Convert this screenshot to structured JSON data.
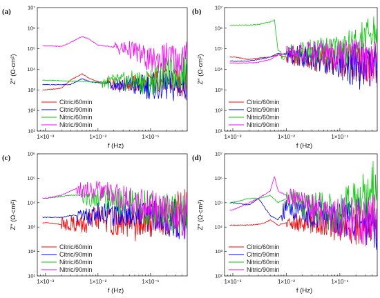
{
  "chart_data": [
    {
      "panel_label": "(a)",
      "type": "line",
      "xlabel": "f (Hz)",
      "ylabel": "Z″ (Ω·cm²)",
      "xscale": "log",
      "yscale": "log",
      "xlim": [
        0.0007,
        0.5
      ],
      "ylim": [
        10,
        10000000
      ],
      "x_ticks": [
        "1×10⁻³",
        "1×10⁻²",
        "1×10⁻¹"
      ],
      "y_ticks": [
        "10¹",
        "10²",
        "10³",
        "10⁴",
        "10⁵",
        "10⁶",
        "10⁷"
      ],
      "legend_position": "bottom-left",
      "grid": false,
      "series": [
        {
          "name": "Citric/60min",
          "color": "#ff0000",
          "x": [
            0.001,
            0.002,
            0.003,
            0.005,
            0.007,
            0.01,
            0.02,
            0.05,
            0.1,
            0.2,
            0.3,
            0.5
          ],
          "y": [
            1000,
            1200,
            3000,
            6000,
            3500,
            2500,
            2000,
            2000,
            2200,
            3500,
            2000,
            2500
          ],
          "noise": 0.25,
          "noise_from": 0.015
        },
        {
          "name": "Citric/90min",
          "color": "#0000ff",
          "x": [
            0.001,
            0.002,
            0.003,
            0.005,
            0.007,
            0.01,
            0.02,
            0.05,
            0.1,
            0.2,
            0.3,
            0.5
          ],
          "y": [
            1800,
            1800,
            1800,
            3500,
            2500,
            2200,
            2000,
            1500,
            1500,
            1600,
            1500,
            3000
          ],
          "noise": 0.3,
          "noise_from": 0.015
        },
        {
          "name": "Nitric/60min",
          "color": "#00cc00",
          "x": [
            0.001,
            0.002,
            0.003,
            0.005,
            0.007,
            0.01,
            0.02,
            0.05,
            0.1,
            0.2,
            0.3,
            0.5
          ],
          "y": [
            3000,
            2800,
            2600,
            2600,
            2500,
            2400,
            2500,
            2500,
            2500,
            6000,
            6000,
            9000
          ],
          "noise": 0.3,
          "noise_from": 0.012
        },
        {
          "name": "Nitric/90min",
          "color": "#ff00ff",
          "x": [
            0.001,
            0.002,
            0.003,
            0.005,
            0.007,
            0.01,
            0.02,
            0.05,
            0.1,
            0.2,
            0.3,
            0.5
          ],
          "y": [
            140000,
            130000,
            200000,
            400000,
            280000,
            150000,
            120000,
            80000,
            25000,
            40000,
            30000,
            30000
          ],
          "noise": 0.3,
          "noise_from": 0.02
        }
      ]
    },
    {
      "panel_label": "(b)",
      "type": "line",
      "xlabel": "f (Hz)",
      "ylabel": "Z″ (Ω·cm²)",
      "xscale": "log",
      "yscale": "log",
      "xlim": [
        0.0007,
        0.5
      ],
      "ylim": [
        10,
        10000000
      ],
      "x_ticks": [
        "1×10⁻³",
        "1×10⁻²",
        "1×10⁻¹"
      ],
      "y_ticks": [
        "10¹",
        "10²",
        "10³",
        "10⁴",
        "10⁵",
        "10⁶",
        "10⁷"
      ],
      "legend_position": "bottom-left",
      "grid": false,
      "series": [
        {
          "name": "Citric/60min",
          "color": "#ff0000",
          "x": [
            0.001,
            0.002,
            0.003,
            0.005,
            0.007,
            0.01,
            0.02,
            0.05,
            0.1,
            0.2,
            0.3,
            0.5
          ],
          "y": [
            40000,
            30000,
            35000,
            40000,
            50000,
            40000,
            35000,
            30000,
            25000,
            20000,
            15000,
            12000
          ],
          "noise": 0.35,
          "noise_from": 0.01
        },
        {
          "name": "Citric/90min",
          "color": "#0000ff",
          "x": [
            0.001,
            0.002,
            0.003,
            0.005,
            0.007,
            0.01,
            0.02,
            0.05,
            0.1,
            0.2,
            0.3,
            0.5
          ],
          "y": [
            25000,
            25000,
            30000,
            40000,
            60000,
            50000,
            45000,
            35000,
            25000,
            15000,
            10000,
            8000
          ],
          "noise": 0.4,
          "noise_from": 0.01
        },
        {
          "name": "Nitric/60min",
          "color": "#00cc00",
          "x": [
            0.001,
            0.002,
            0.003,
            0.005,
            0.006,
            0.007,
            0.01,
            0.02,
            0.05,
            0.1,
            0.2,
            0.3,
            0.5
          ],
          "y": [
            1400000,
            1400000,
            1500000,
            2000000,
            2500000,
            80000,
            60000,
            70000,
            80000,
            100000,
            150000,
            300000,
            600000
          ],
          "noise": 0.35,
          "noise_from": 0.008
        },
        {
          "name": "Nitric/90min",
          "color": "#ff00ff",
          "x": [
            0.001,
            0.002,
            0.003,
            0.005,
            0.007,
            0.01,
            0.02,
            0.05,
            0.1,
            0.2,
            0.3,
            0.5
          ],
          "y": [
            20000,
            20000,
            22000,
            30000,
            50000,
            60000,
            70000,
            60000,
            50000,
            40000,
            30000,
            25000
          ],
          "noise": 0.35,
          "noise_from": 0.01
        }
      ]
    },
    {
      "panel_label": "(c)",
      "type": "line",
      "xlabel": "f (Hz)",
      "ylabel": "Z″ (Ω·cm²)",
      "xscale": "log",
      "yscale": "log",
      "xlim": [
        0.0007,
        0.5
      ],
      "ylim": [
        10,
        1000000
      ],
      "x_ticks": [
        "1×10⁻³",
        "1×10⁻²",
        "1×10⁻¹"
      ],
      "y_ticks": [
        "10¹",
        "10²",
        "10³",
        "10⁴",
        "10⁵",
        "10⁶"
      ],
      "legend_position": "bottom-left",
      "grid": false,
      "series": [
        {
          "name": "Citric/60min",
          "color": "#ff0000",
          "x": [
            0.001,
            0.002,
            0.003,
            0.005,
            0.007,
            0.01,
            0.02,
            0.05,
            0.1,
            0.2,
            0.3,
            0.5
          ],
          "y": [
            1500,
            1300,
            1500,
            1200,
            1500,
            2500,
            1500,
            1200,
            2000,
            3000,
            4000,
            5000
          ],
          "noise": 0.3,
          "noise_from": 0.002
        },
        {
          "name": "Citric/90min",
          "color": "#0000ff",
          "x": [
            0.001,
            0.002,
            0.003,
            0.005,
            0.007,
            0.01,
            0.02,
            0.05,
            0.1,
            0.2,
            0.3,
            0.5
          ],
          "y": [
            2500,
            2500,
            3000,
            3000,
            2500,
            4500,
            3500,
            4000,
            3000,
            2500,
            2000,
            1500
          ],
          "noise": 0.3,
          "noise_from": 0.004
        },
        {
          "name": "Nitric/60min",
          "color": "#00cc00",
          "x": [
            0.001,
            0.002,
            0.003,
            0.005,
            0.007,
            0.01,
            0.02,
            0.05,
            0.1,
            0.2,
            0.3,
            0.5
          ],
          "y": [
            15000,
            18000,
            20000,
            20000,
            15000,
            18000,
            12000,
            8000,
            6000,
            4000,
            3000,
            2500
          ],
          "noise": 0.3,
          "noise_from": 0.005
        },
        {
          "name": "Nitric/90min",
          "color": "#ff00ff",
          "x": [
            0.001,
            0.002,
            0.003,
            0.004,
            0.005,
            0.007,
            0.01,
            0.02,
            0.05,
            0.1,
            0.2,
            0.3,
            0.5
          ],
          "y": [
            15000,
            20000,
            30000,
            40000,
            30000,
            35000,
            30000,
            20000,
            10000,
            6000,
            4000,
            3000,
            2500
          ],
          "noise": 0.3,
          "noise_from": 0.004
        }
      ]
    },
    {
      "panel_label": "(d)",
      "type": "line",
      "xlabel": "f (Hz)",
      "ylabel": "Z″ (Ω·cm²)",
      "xscale": "log",
      "yscale": "log",
      "xlim": [
        0.0007,
        0.5
      ],
      "ylim": [
        100,
        10000000
      ],
      "x_ticks": [
        "1×10⁻³",
        "1×10⁻²",
        "1×10⁻¹"
      ],
      "y_ticks": [
        "10²",
        "10³",
        "10⁴",
        "10⁵",
        "10⁶",
        "10⁷"
      ],
      "legend_position": "bottom-left",
      "grid": false,
      "series": [
        {
          "name": "Citric/60min",
          "color": "#ff0000",
          "x": [
            0.001,
            0.002,
            0.003,
            0.004,
            0.005,
            0.007,
            0.01,
            0.02,
            0.05,
            0.1,
            0.2,
            0.3,
            0.5
          ],
          "y": [
            12000,
            12000,
            13000,
            15000,
            20000,
            12000,
            15000,
            15000,
            14000,
            12000,
            12000,
            15000,
            15000
          ],
          "noise": 0.3,
          "noise_from": 0.01
        },
        {
          "name": "Citric/90min",
          "color": "#0000ff",
          "x": [
            0.001,
            0.002,
            0.003,
            0.005,
            0.007,
            0.01,
            0.02,
            0.05,
            0.1,
            0.2,
            0.3,
            0.5
          ],
          "y": [
            100000,
            80000,
            150000,
            30000,
            20000,
            60000,
            40000,
            30000,
            25000,
            20000,
            20000,
            15000
          ],
          "noise": 0.35,
          "noise_from": 0.008
        },
        {
          "name": "Nitric/60min",
          "color": "#00cc00",
          "x": [
            0.001,
            0.002,
            0.003,
            0.005,
            0.007,
            0.01,
            0.02,
            0.05,
            0.1,
            0.2,
            0.3,
            0.5
          ],
          "y": [
            100000,
            150000,
            150000,
            200000,
            100000,
            150000,
            80000,
            50000,
            40000,
            80000,
            200000,
            500000
          ],
          "noise": 0.4,
          "noise_from": 0.01
        },
        {
          "name": "Nitric/90min",
          "color": "#ff00ff",
          "x": [
            0.001,
            0.002,
            0.003,
            0.005,
            0.006,
            0.007,
            0.01,
            0.02,
            0.05,
            0.1,
            0.2,
            0.3,
            0.5
          ],
          "y": [
            50000,
            100000,
            150000,
            300000,
            1200000,
            300000,
            200000,
            100000,
            40000,
            25000,
            20000,
            15000,
            20000
          ],
          "noise": 0.35,
          "noise_from": 0.01
        }
      ]
    }
  ]
}
